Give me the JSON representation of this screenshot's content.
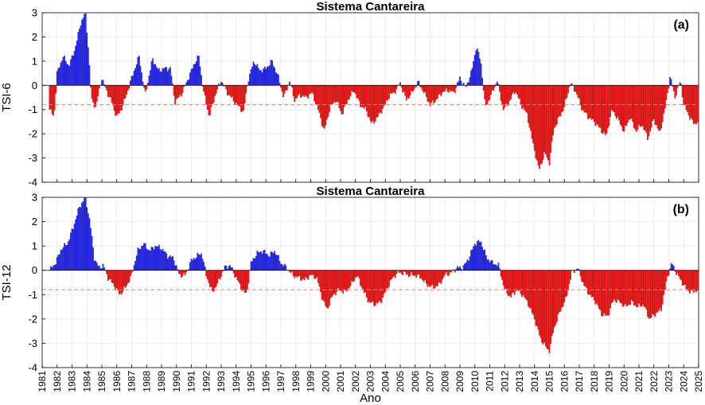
{
  "chart_data": [
    {
      "type": "bar",
      "title": "Sistema Cantareira",
      "panel_label": "(a)",
      "ylabel": "TSI-6",
      "xlabel": "",
      "ylim": [
        -4,
        3
      ],
      "yticks": [
        "-4",
        "-3",
        "-2",
        "-1",
        "0",
        "1",
        "2",
        "3"
      ],
      "grid": true,
      "threshold": -0.8,
      "x_start": 1981.5,
      "x_end": 2024.9,
      "colors": {
        "positive": "#2a2aff",
        "negative": "#ff1a1a",
        "threshold": "#f08080"
      },
      "anchors": [
        [
          1981.5,
          -1.0
        ],
        [
          1981.8,
          -1.3
        ],
        [
          1982.0,
          0.5
        ],
        [
          1982.4,
          1.2
        ],
        [
          1982.8,
          0.8
        ],
        [
          1983.2,
          1.5
        ],
        [
          1983.6,
          2.6
        ],
        [
          1983.9,
          3.0
        ],
        [
          1984.1,
          1.5
        ],
        [
          1984.3,
          -0.6
        ],
        [
          1984.6,
          -0.9
        ],
        [
          1985.0,
          0.3
        ],
        [
          1985.3,
          -0.2
        ],
        [
          1985.6,
          -0.6
        ],
        [
          1986.0,
          -1.3
        ],
        [
          1986.3,
          -1.0
        ],
        [
          1986.6,
          -0.5
        ],
        [
          1987.0,
          0.3
        ],
        [
          1987.5,
          1.2
        ],
        [
          1987.9,
          -0.4
        ],
        [
          1988.2,
          0.5
        ],
        [
          1988.4,
          1.1
        ],
        [
          1988.8,
          0.6
        ],
        [
          1989.2,
          0.7
        ],
        [
          1989.6,
          0.7
        ],
        [
          1989.9,
          -0.7
        ],
        [
          1990.4,
          -0.3
        ],
        [
          1990.8,
          0.3
        ],
        [
          1991.2,
          0.9
        ],
        [
          1991.5,
          1.2
        ],
        [
          1991.8,
          -0.2
        ],
        [
          1992.2,
          -1.3
        ],
        [
          1992.6,
          -0.4
        ],
        [
          1993.0,
          0.2
        ],
        [
          1993.4,
          -0.3
        ],
        [
          1993.8,
          -0.6
        ],
        [
          1994.2,
          -0.9
        ],
        [
          1994.5,
          -1.1
        ],
        [
          1994.8,
          0.2
        ],
        [
          1995.2,
          1.0
        ],
        [
          1995.6,
          0.6
        ],
        [
          1996.0,
          0.7
        ],
        [
          1996.4,
          1.0
        ],
        [
          1996.8,
          0.4
        ],
        [
          1997.2,
          -0.5
        ],
        [
          1997.6,
          0.2
        ],
        [
          1997.9,
          -0.6
        ],
        [
          1998.3,
          -0.4
        ],
        [
          1998.7,
          -0.5
        ],
        [
          1999.1,
          -0.3
        ],
        [
          1999.6,
          -1.2
        ],
        [
          1999.9,
          -1.9
        ],
        [
          2000.3,
          -0.9
        ],
        [
          2000.7,
          -0.6
        ],
        [
          2001.1,
          -1.2
        ],
        [
          2001.5,
          -0.6
        ],
        [
          2001.9,
          -0.2
        ],
        [
          2002.3,
          -0.8
        ],
        [
          2002.7,
          -1.0
        ],
        [
          2003.1,
          -1.6
        ],
        [
          2003.5,
          -1.3
        ],
        [
          2003.9,
          -0.9
        ],
        [
          2004.3,
          -0.4
        ],
        [
          2004.6,
          -0.3
        ],
        [
          2005.0,
          0.1
        ],
        [
          2005.4,
          -0.6
        ],
        [
          2005.8,
          -0.3
        ],
        [
          2006.2,
          0.15
        ],
        [
          2006.6,
          -0.3
        ],
        [
          2007.0,
          -0.8
        ],
        [
          2007.4,
          -0.6
        ],
        [
          2007.8,
          -0.3
        ],
        [
          2008.2,
          -0.2
        ],
        [
          2008.6,
          -0.3
        ],
        [
          2009.0,
          0.3
        ],
        [
          2009.4,
          -0.1
        ],
        [
          2009.8,
          0.6
        ],
        [
          2010.1,
          1.6
        ],
        [
          2010.4,
          1.0
        ],
        [
          2010.7,
          -0.9
        ],
        [
          2011.1,
          -0.4
        ],
        [
          2011.5,
          0.2
        ],
        [
          2011.9,
          -1.0
        ],
        [
          2012.3,
          -0.7
        ],
        [
          2012.7,
          -0.2
        ],
        [
          2013.1,
          -0.8
        ],
        [
          2013.5,
          -1.2
        ],
        [
          2013.9,
          -2.4
        ],
        [
          2014.3,
          -3.5
        ],
        [
          2014.7,
          -2.8
        ],
        [
          2015.0,
          -3.2
        ],
        [
          2015.3,
          -1.8
        ],
        [
          2015.6,
          -1.4
        ],
        [
          2016.0,
          -0.9
        ],
        [
          2016.4,
          0.1
        ],
        [
          2016.8,
          -0.3
        ],
        [
          2017.2,
          -1.0
        ],
        [
          2017.6,
          -1.3
        ],
        [
          2018.0,
          -1.5
        ],
        [
          2018.4,
          -1.8
        ],
        [
          2018.8,
          -2.1
        ],
        [
          2019.2,
          -1.0
        ],
        [
          2019.6,
          -1.4
        ],
        [
          2020.0,
          -1.9
        ],
        [
          2020.4,
          -1.3
        ],
        [
          2020.8,
          -1.9
        ],
        [
          2021.2,
          -1.6
        ],
        [
          2021.6,
          -2.2
        ],
        [
          2022.0,
          -1.4
        ],
        [
          2022.4,
          -2.0
        ],
        [
          2022.8,
          -0.8
        ],
        [
          2023.1,
          0.4
        ],
        [
          2023.4,
          -0.5
        ],
        [
          2023.8,
          0.2
        ],
        [
          2024.0,
          -0.8
        ],
        [
          2024.4,
          -1.3
        ],
        [
          2024.7,
          -1.6
        ],
        [
          2024.9,
          -1.5
        ]
      ]
    },
    {
      "type": "bar",
      "title": "Sistema Cantareira",
      "panel_label": "(b)",
      "ylabel": "TSI-12",
      "xlabel": "Ano",
      "ylim": [
        -4,
        3
      ],
      "yticks": [
        "-4",
        "-3",
        "-2",
        "-1",
        "0",
        "1",
        "2",
        "3"
      ],
      "grid": true,
      "threshold": -0.8,
      "x_start": 1981.5,
      "x_end": 2024.9,
      "colors": {
        "positive": "#2a2aff",
        "negative": "#ff1a1a",
        "threshold": "#f08080"
      },
      "anchors": [
        [
          1981.5,
          0.0
        ],
        [
          1981.9,
          0.3
        ],
        [
          1982.3,
          0.9
        ],
        [
          1982.7,
          1.1
        ],
        [
          1983.1,
          1.8
        ],
        [
          1983.5,
          2.6
        ],
        [
          1983.9,
          3.0
        ],
        [
          1984.2,
          2.0
        ],
        [
          1984.5,
          0.5
        ],
        [
          1984.8,
          0.1
        ],
        [
          1985.1,
          0.2
        ],
        [
          1985.4,
          -0.3
        ],
        [
          1985.8,
          -0.6
        ],
        [
          1986.2,
          -1.0
        ],
        [
          1986.6,
          -0.7
        ],
        [
          1987.0,
          -0.2
        ],
        [
          1987.4,
          0.8
        ],
        [
          1987.8,
          1.1
        ],
        [
          1988.2,
          0.8
        ],
        [
          1988.6,
          1.0
        ],
        [
          1989.0,
          0.9
        ],
        [
          1989.4,
          0.6
        ],
        [
          1989.8,
          0.5
        ],
        [
          1990.2,
          -0.2
        ],
        [
          1990.6,
          -0.2
        ],
        [
          1991.0,
          0.4
        ],
        [
          1991.4,
          0.6
        ],
        [
          1991.7,
          0.7
        ],
        [
          1992.0,
          -0.2
        ],
        [
          1992.4,
          -0.9
        ],
        [
          1992.8,
          -0.5
        ],
        [
          1993.2,
          0.1
        ],
        [
          1993.6,
          0.2
        ],
        [
          1994.0,
          -0.3
        ],
        [
          1994.4,
          -0.8
        ],
        [
          1994.7,
          -1.0
        ],
        [
          1995.0,
          0.3
        ],
        [
          1995.4,
          0.7
        ],
        [
          1995.8,
          0.8
        ],
        [
          1996.2,
          0.6
        ],
        [
          1996.6,
          0.8
        ],
        [
          1997.0,
          0.3
        ],
        [
          1997.4,
          0.1
        ],
        [
          1997.8,
          -0.2
        ],
        [
          1998.2,
          -0.3
        ],
        [
          1998.6,
          -0.4
        ],
        [
          1999.0,
          -0.2
        ],
        [
          1999.4,
          -0.3
        ],
        [
          1999.8,
          -1.2
        ],
        [
          2000.1,
          -1.6
        ],
        [
          2000.5,
          -1.0
        ],
        [
          2000.9,
          -0.8
        ],
        [
          2001.3,
          -0.9
        ],
        [
          2001.7,
          -0.6
        ],
        [
          2002.1,
          -0.2
        ],
        [
          2002.5,
          -0.8
        ],
        [
          2002.9,
          -1.3
        ],
        [
          2003.3,
          -1.4
        ],
        [
          2003.7,
          -1.3
        ],
        [
          2004.0,
          -0.9
        ],
        [
          2004.4,
          -0.4
        ],
        [
          2004.8,
          -0.1
        ],
        [
          2005.2,
          -0.1
        ],
        [
          2005.6,
          -0.2
        ],
        [
          2006.0,
          -0.2
        ],
        [
          2006.4,
          -0.3
        ],
        [
          2006.8,
          -0.6
        ],
        [
          2007.2,
          -0.7
        ],
        [
          2007.6,
          -0.6
        ],
        [
          2008.0,
          -0.2
        ],
        [
          2008.4,
          -0.1
        ],
        [
          2008.8,
          0.1
        ],
        [
          2009.2,
          0.1
        ],
        [
          2009.6,
          0.5
        ],
        [
          2010.0,
          1.1
        ],
        [
          2010.4,
          1.2
        ],
        [
          2010.8,
          0.5
        ],
        [
          2011.2,
          0.3
        ],
        [
          2011.6,
          0.2
        ],
        [
          2012.0,
          -0.8
        ],
        [
          2012.4,
          -1.1
        ],
        [
          2012.8,
          -0.8
        ],
        [
          2013.2,
          -1.0
        ],
        [
          2013.6,
          -1.4
        ],
        [
          2014.0,
          -2.0
        ],
        [
          2014.4,
          -2.8
        ],
        [
          2014.8,
          -3.2
        ],
        [
          2015.0,
          -3.3
        ],
        [
          2015.3,
          -2.4
        ],
        [
          2015.7,
          -1.7
        ],
        [
          2016.1,
          -1.2
        ],
        [
          2016.5,
          -0.1
        ],
        [
          2016.9,
          0.1
        ],
        [
          2017.3,
          -0.6
        ],
        [
          2017.7,
          -1.0
        ],
        [
          2018.1,
          -1.3
        ],
        [
          2018.5,
          -1.8
        ],
        [
          2018.9,
          -1.9
        ],
        [
          2019.3,
          -1.2
        ],
        [
          2019.7,
          -1.3
        ],
        [
          2020.1,
          -1.5
        ],
        [
          2020.5,
          -1.3
        ],
        [
          2020.9,
          -1.5
        ],
        [
          2021.3,
          -1.4
        ],
        [
          2021.7,
          -2.0
        ],
        [
          2022.1,
          -1.8
        ],
        [
          2022.5,
          -1.6
        ],
        [
          2022.9,
          -0.3
        ],
        [
          2023.2,
          0.3
        ],
        [
          2023.5,
          -0.1
        ],
        [
          2023.9,
          -0.5
        ],
        [
          2024.2,
          -0.8
        ],
        [
          2024.6,
          -0.9
        ],
        [
          2024.9,
          -0.8
        ]
      ]
    }
  ],
  "x_axis": {
    "years": [
      "1981",
      "1982",
      "1983",
      "1984",
      "1985",
      "1986",
      "1987",
      "1988",
      "1989",
      "1990",
      "1991",
      "1992",
      "1993",
      "1994",
      "1995",
      "1996",
      "1997",
      "1998",
      "1999",
      "2000",
      "2001",
      "2002",
      "2003",
      "2004",
      "2005",
      "2006",
      "2007",
      "2008",
      "2009",
      "2010",
      "2011",
      "2012",
      "2013",
      "2014",
      "2015",
      "2016",
      "2017",
      "2018",
      "2019",
      "2020",
      "2021",
      "2022",
      "2023",
      "2024",
      "2025"
    ]
  }
}
